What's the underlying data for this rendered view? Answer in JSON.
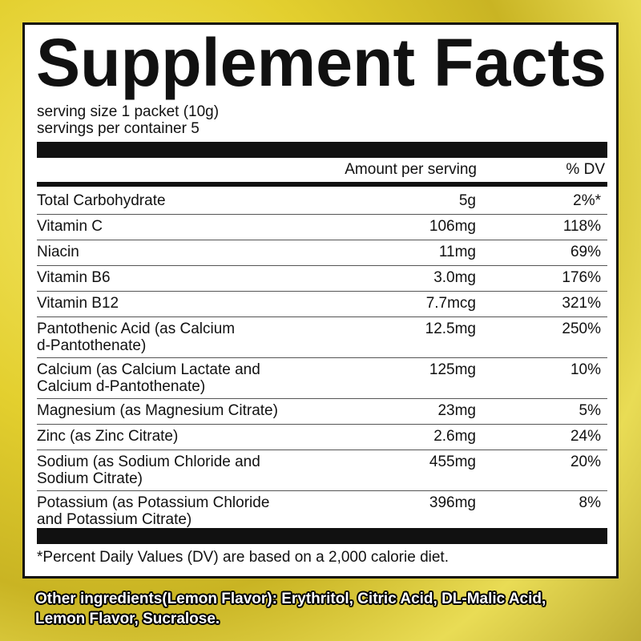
{
  "title": "Supplement Facts",
  "serving_size": "serving size 1 packet (10g)",
  "servings_per_container": "servings per container 5",
  "table": {
    "header": {
      "amount": "Amount per serving",
      "dv": "% DV"
    },
    "rows": [
      {
        "name": [
          "Total Carbohydrate"
        ],
        "amount": "5g",
        "dv": "2%*"
      },
      {
        "name": [
          "Vitamin  C"
        ],
        "amount": "106mg",
        "dv": "118%"
      },
      {
        "name": [
          "Niacin"
        ],
        "amount": "11mg",
        "dv": "69%"
      },
      {
        "name": [
          "Vitamin B6"
        ],
        "amount": "3.0mg",
        "dv": "176%"
      },
      {
        "name": [
          "Vitamin B12"
        ],
        "amount": "7.7mcg",
        "dv": "321%"
      },
      {
        "name": [
          "Pantothenic Acid (as Calcium",
          "d-Pantothenate)"
        ],
        "amount": "12.5mg",
        "dv": "250%"
      },
      {
        "name": [
          "Calcium (as Calcium Lactate and",
          "Calcium d-Pantothenate)"
        ],
        "amount": "125mg",
        "dv": "10%"
      },
      {
        "name": [
          "Magnesium (as Magnesium Citrate)"
        ],
        "amount": "23mg",
        "dv": "5%"
      },
      {
        "name": [
          "Zinc (as Zinc Citrate)"
        ],
        "amount": "2.6mg",
        "dv": "24%"
      },
      {
        "name": [
          "Sodium (as Sodium Chloride and",
          "Sodium Citrate)"
        ],
        "amount": "455mg",
        "dv": "20%"
      },
      {
        "name": [
          "Potassium (as Potassium Chloride",
          "and Potassium Citrate)"
        ],
        "amount": "396mg",
        "dv": "8%"
      }
    ]
  },
  "footnote": "*Percent Daily Values (DV) are based on a 2,000 calorie diet.",
  "other_ingredients": [
    "Other ingredients(Lemon Flavor): Erythritol, Citric Acid, DL-Malic Acid,",
    "Lemon Flavor, Sucralose."
  ]
}
